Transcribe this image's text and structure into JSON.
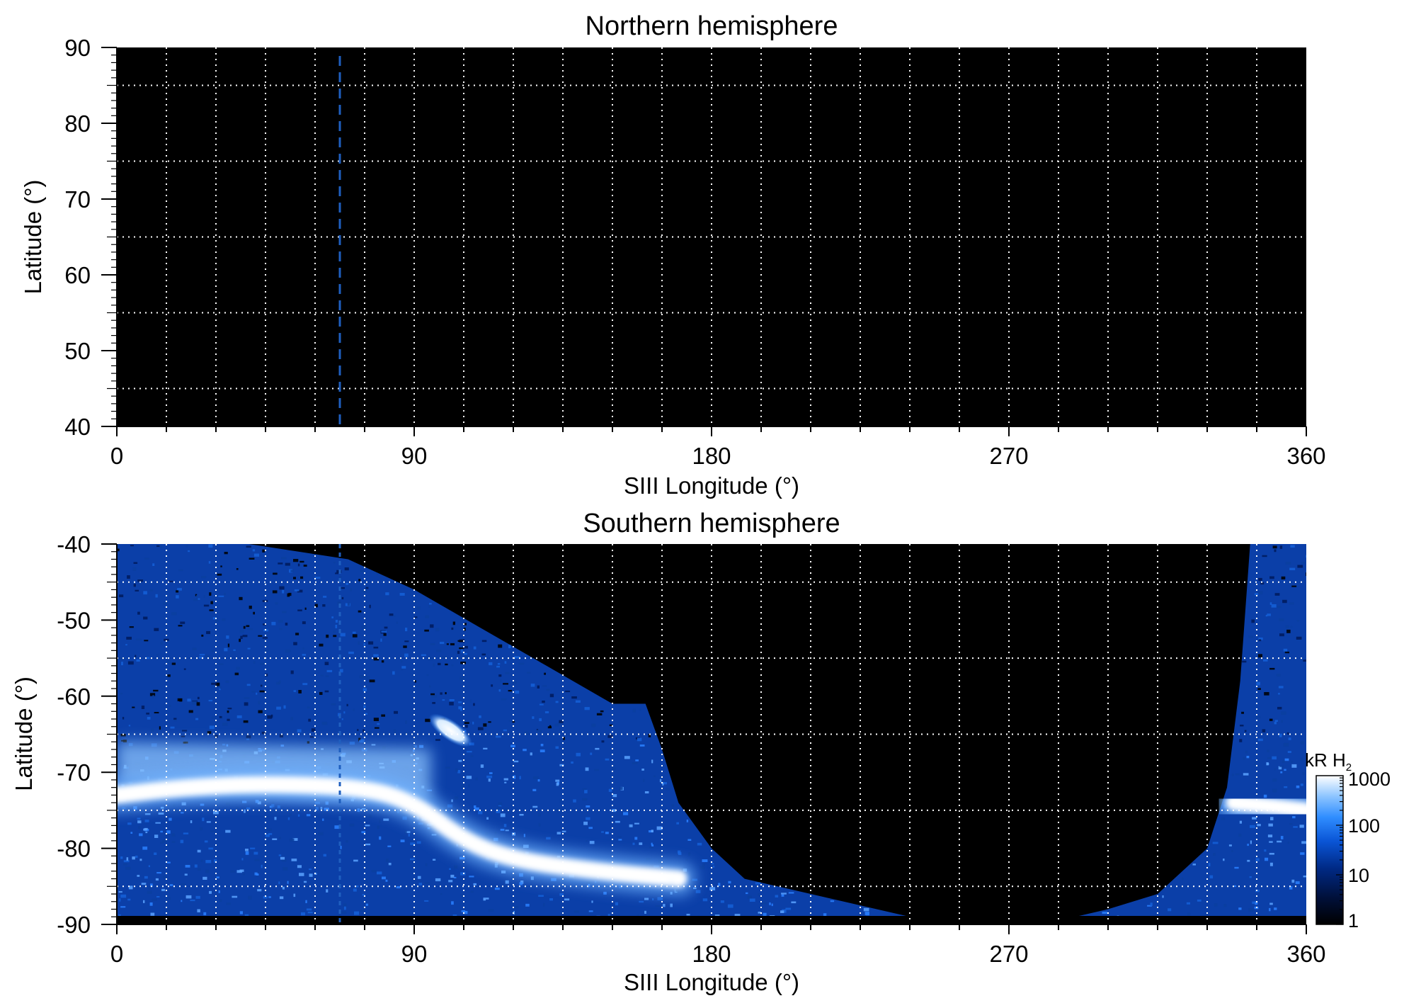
{
  "colors": {
    "background": "#ffffff",
    "plot_background": "#000000",
    "grid": "#ffffff",
    "marker_line": "#1f5fbf",
    "colormap": [
      "#000000",
      "#00103a",
      "#002a86",
      "#0a55d6",
      "#2f8dff",
      "#8cc4ff",
      "#ffffff"
    ]
  },
  "colorbar": {
    "label": "kR H",
    "label_subscript": "2",
    "scale": "log",
    "range": [
      1,
      1000
    ],
    "ticks": [
      "1000",
      "100",
      "10",
      "1"
    ]
  },
  "chart_data": [
    {
      "type": "heatmap",
      "title": "Northern hemisphere",
      "xlabel": "SIII Longitude (°)",
      "ylabel": "Latitude (°)",
      "xlim": [
        0,
        360
      ],
      "ylim": [
        40,
        90
      ],
      "x_ticks": [
        0,
        90,
        180,
        270,
        360
      ],
      "y_ticks": [
        40,
        50,
        60,
        70,
        80,
        90
      ],
      "grid_x_step": 15,
      "grid_y_step": 10,
      "grid": true,
      "marker_longitude": 67.5,
      "emission": "none (black)"
    },
    {
      "type": "heatmap",
      "title": "Southern hemisphere",
      "xlabel": "SIII Longitude (°)",
      "ylabel": "Latitude (°)",
      "xlim": [
        0,
        360
      ],
      "ylim": [
        -90,
        -40
      ],
      "x_ticks": [
        0,
        90,
        180,
        270,
        360
      ],
      "y_ticks": [
        -40,
        -50,
        -60,
        -70,
        -80,
        -90
      ],
      "grid_x_step": 15,
      "grid_y_step": 10,
      "grid": true,
      "marker_longitude": 67.5,
      "coverage_boundary": [
        [
          0,
          -40
        ],
        [
          40,
          -40
        ],
        [
          70,
          -42
        ],
        [
          90,
          -46
        ],
        [
          110,
          -51
        ],
        [
          130,
          -56
        ],
        [
          150,
          -61
        ],
        [
          160,
          -61
        ],
        [
          165,
          -67
        ],
        [
          170,
          -74
        ],
        [
          180,
          -80
        ],
        [
          190,
          -84
        ],
        [
          210,
          -86
        ],
        [
          235,
          -88.5
        ],
        [
          250,
          -90
        ],
        [
          280,
          -90
        ],
        [
          300,
          -88
        ],
        [
          315,
          -86
        ],
        [
          330,
          -80
        ],
        [
          336,
          -72
        ],
        [
          340,
          -58
        ],
        [
          343,
          -40
        ],
        [
          360,
          -40
        ]
      ],
      "main_oval": [
        [
          0,
          -73
        ],
        [
          20,
          -72
        ],
        [
          45,
          -71.5
        ],
        [
          75,
          -72
        ],
        [
          90,
          -74
        ],
        [
          105,
          -79
        ],
        [
          120,
          -81.5
        ],
        [
          145,
          -83
        ],
        [
          170,
          -84
        ]
      ],
      "main_oval_east": [
        [
          338,
          -74
        ],
        [
          350,
          -74.5
        ],
        [
          360,
          -75
        ]
      ],
      "bright_spot": {
        "longitude": 101,
        "latitude": -64.5
      },
      "diffuse_region": {
        "lon_range": [
          0,
          95
        ],
        "lat_range": [
          -66,
          -72
        ]
      }
    }
  ]
}
